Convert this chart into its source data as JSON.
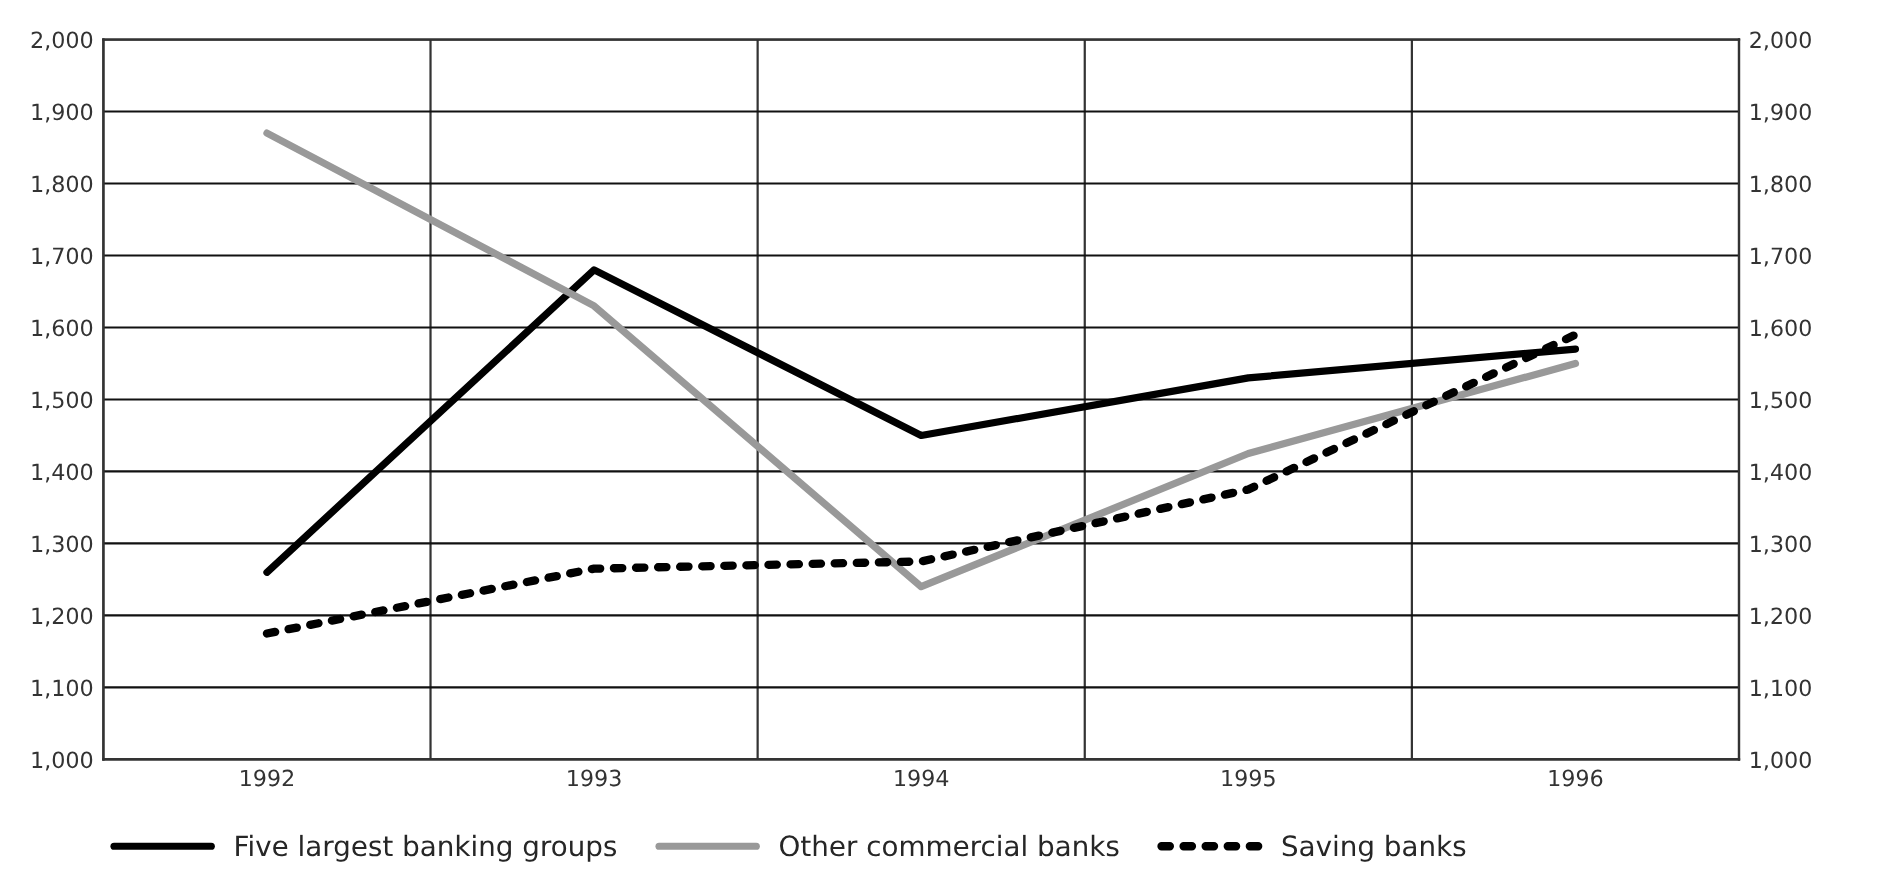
{
  "chart_data": {
    "type": "line",
    "categories": [
      "1992",
      "1993",
      "1994",
      "1995",
      "1996"
    ],
    "series": [
      {
        "name": "Five largest banking groups",
        "color": "#000000",
        "line_style": "solid",
        "values": [
          1260,
          1680,
          1450,
          1530,
          1570
        ]
      },
      {
        "name": "Other commercial banks",
        "color": "#999999",
        "line_style": "solid",
        "values": [
          1870,
          1630,
          1240,
          1425,
          1550
        ]
      },
      {
        "name": "Saving banks",
        "color": "#000000",
        "line_style": "dotted",
        "values": [
          1175,
          1265,
          1275,
          1375,
          1590
        ]
      }
    ],
    "ylim": [
      1000,
      2000
    ],
    "yticks": [
      {
        "value": 1000,
        "label": "1,000"
      },
      {
        "value": 1100,
        "label": "1,100"
      },
      {
        "value": 1200,
        "label": "1,200"
      },
      {
        "value": 1300,
        "label": "1,300"
      },
      {
        "value": 1400,
        "label": "1,400"
      },
      {
        "value": 1500,
        "label": "1,500"
      },
      {
        "value": 1600,
        "label": "1,600"
      },
      {
        "value": 1700,
        "label": "1,700"
      },
      {
        "value": 1800,
        "label": "1,800"
      },
      {
        "value": 1900,
        "label": "1,900"
      },
      {
        "value": 2000,
        "label": "2,000"
      }
    ],
    "y2lim": [
      1000,
      2000
    ],
    "y2ticks": [
      {
        "value": 1000,
        "label": "1,000"
      },
      {
        "value": 1100,
        "label": "1,100"
      },
      {
        "value": 1200,
        "label": "1,200"
      },
      {
        "value": 1300,
        "label": "1,300"
      },
      {
        "value": 1400,
        "label": "1,400"
      },
      {
        "value": 1500,
        "label": "1,500"
      },
      {
        "value": 1600,
        "label": "1,600"
      },
      {
        "value": 1700,
        "label": "1,700"
      },
      {
        "value": 1800,
        "label": "1,800"
      },
      {
        "value": 1900,
        "label": "1,900"
      },
      {
        "value": 2000,
        "label": "2,000"
      }
    ],
    "grid": true,
    "legend": "bottom",
    "marker": "none"
  }
}
